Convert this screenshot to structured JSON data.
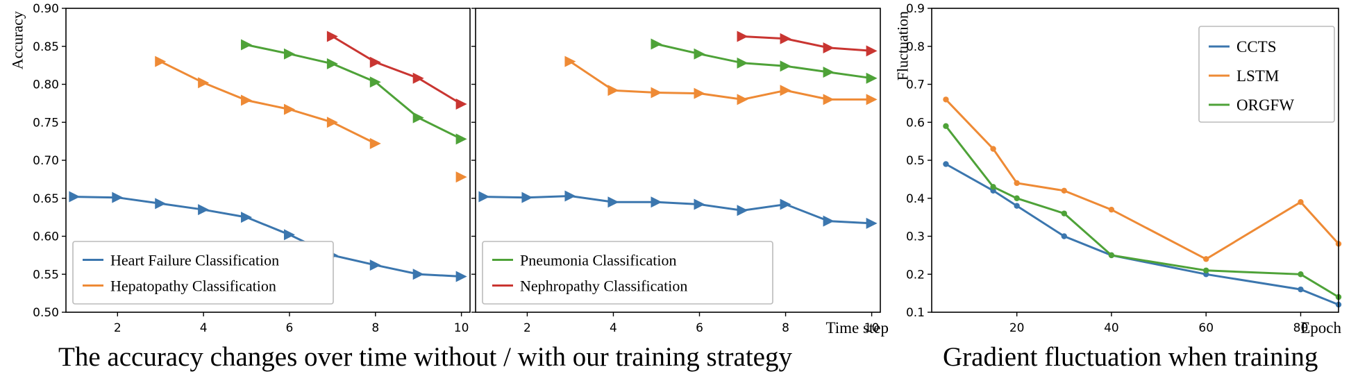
{
  "colors": {
    "blue": "#3b76ae",
    "orange": "#ee8a35",
    "green": "#4ea238",
    "red": "#c93531"
  },
  "captions": {
    "left": "The accuracy changes over time without / with our training strategy",
    "right": "Gradient fluctuation when training"
  },
  "chart_data": [
    {
      "type": "line",
      "marker": "triangle-right",
      "ylabel": "Accuracy",
      "xlabel": "",
      "ylim": [
        0.5,
        0.9
      ],
      "yticks": [
        "0.50",
        "0.55",
        "0.60",
        "0.65",
        "0.70",
        "0.75",
        "0.80",
        "0.85",
        "0.90"
      ],
      "xlim": [
        0.8,
        10.2
      ],
      "xticks": [
        "2",
        "4",
        "6",
        "8",
        "10"
      ],
      "grid": false,
      "legend_position": "bottom-left",
      "series": [
        {
          "name": "Heart Failure Classification",
          "color": "blue",
          "x": [
            1,
            2,
            3,
            4,
            5,
            6,
            7,
            8,
            9,
            10
          ],
          "values": [
            0.652,
            0.651,
            0.643,
            0.635,
            0.625,
            0.602,
            0.575,
            0.562,
            0.55,
            0.547
          ]
        },
        {
          "name": "Hepatopathy Classification",
          "color": "orange",
          "x": [
            3,
            4,
            5,
            6,
            7,
            8
          ],
          "values": [
            0.83,
            0.802,
            0.779,
            0.767,
            0.75,
            0.722
          ],
          "extra_markers": [
            {
              "x": 10,
              "y": 0.678
            }
          ]
        },
        {
          "name": "",
          "color": "green",
          "x": [
            5,
            6,
            7,
            8,
            9,
            10
          ],
          "values": [
            0.852,
            0.84,
            0.827,
            0.803,
            0.756,
            0.728
          ]
        },
        {
          "name": "",
          "color": "red",
          "x": [
            7,
            8,
            9,
            10
          ],
          "values": [
            0.863,
            0.829,
            0.808,
            0.774
          ]
        }
      ]
    },
    {
      "type": "line",
      "marker": "triangle-right",
      "ylabel": "",
      "xlabel": "Time step",
      "ylim": [
        0.5,
        0.9
      ],
      "xlim": [
        0.8,
        10.2
      ],
      "xticks": [
        "2",
        "4",
        "6",
        "8",
        "10"
      ],
      "grid": false,
      "legend_position": "bottom-left",
      "series": [
        {
          "name": "",
          "color": "blue",
          "x": [
            1,
            2,
            3,
            4,
            5,
            6,
            7,
            8,
            9,
            10
          ],
          "values": [
            0.652,
            0.651,
            0.653,
            0.645,
            0.645,
            0.642,
            0.634,
            0.642,
            0.62,
            0.617
          ]
        },
        {
          "name": "",
          "color": "orange",
          "x": [
            3,
            4,
            5,
            6,
            7,
            8,
            9,
            10
          ],
          "values": [
            0.83,
            0.792,
            0.789,
            0.788,
            0.78,
            0.792,
            0.78,
            0.78
          ]
        },
        {
          "name": "Pneumonia Classification",
          "color": "green",
          "x": [
            5,
            6,
            7,
            8,
            9,
            10
          ],
          "values": [
            0.853,
            0.84,
            0.828,
            0.824,
            0.816,
            0.808
          ]
        },
        {
          "name": "Nephropathy Classification",
          "color": "red",
          "x": [
            7,
            8,
            9,
            10
          ],
          "values": [
            0.863,
            0.86,
            0.848,
            0.844
          ]
        }
      ]
    },
    {
      "type": "line",
      "marker": "dot",
      "ylabel": "Fluctuation",
      "xlabel": "Epoch",
      "ylim": [
        0.1,
        0.9
      ],
      "yticks": [
        "0.1",
        "0.2",
        "0.3",
        "0.4",
        "0.5",
        "0.6",
        "0.7",
        "0.8",
        "0.9"
      ],
      "xlim": [
        2,
        88
      ],
      "xticks": [
        "20",
        "40",
        "60",
        "80"
      ],
      "grid": false,
      "legend_position": "top-right",
      "series": [
        {
          "name": "CCTS",
          "color": "blue",
          "x": [
            5,
            15,
            20,
            30,
            40,
            60,
            80,
            88
          ],
          "values": [
            0.49,
            0.42,
            0.38,
            0.3,
            0.25,
            0.2,
            0.16,
            0.12
          ]
        },
        {
          "name": "LSTM",
          "color": "orange",
          "x": [
            5,
            15,
            20,
            30,
            40,
            60,
            80,
            88
          ],
          "values": [
            0.66,
            0.53,
            0.44,
            0.42,
            0.37,
            0.24,
            0.39,
            0.28
          ]
        },
        {
          "name": "ORGFW",
          "color": "green",
          "x": [
            5,
            15,
            20,
            30,
            40,
            60,
            80,
            88
          ],
          "values": [
            0.59,
            0.43,
            0.4,
            0.36,
            0.25,
            0.21,
            0.2,
            0.14
          ]
        }
      ]
    }
  ]
}
